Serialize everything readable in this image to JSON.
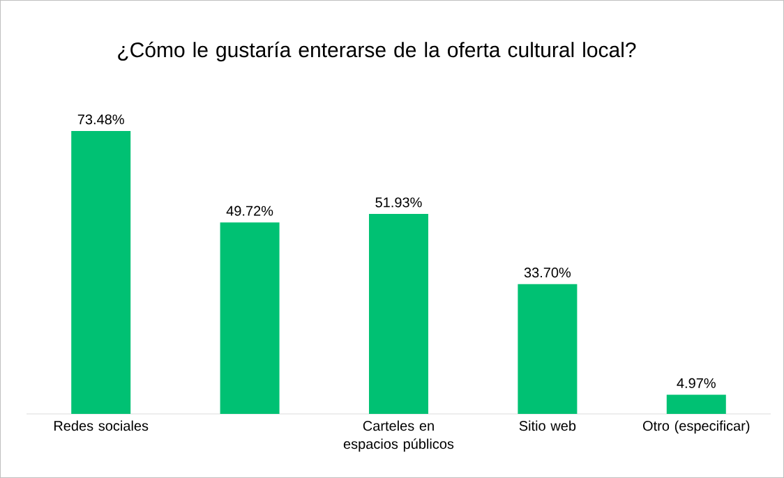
{
  "chart_data": {
    "type": "bar",
    "title": "¿Cómo le gustaría enterarse de la oferta cultural local?",
    "categories": [
      "Redes sociales",
      null,
      "Carteles en espacios públicos",
      "Sitio web",
      "Otro (especificar)"
    ],
    "values": [
      73.48,
      49.72,
      51.93,
      33.7,
      4.97
    ],
    "value_labels": [
      "73.48%",
      "49.72%",
      "51.93%",
      "33.70%",
      "4.97%"
    ],
    "color": "#00c173"
  }
}
